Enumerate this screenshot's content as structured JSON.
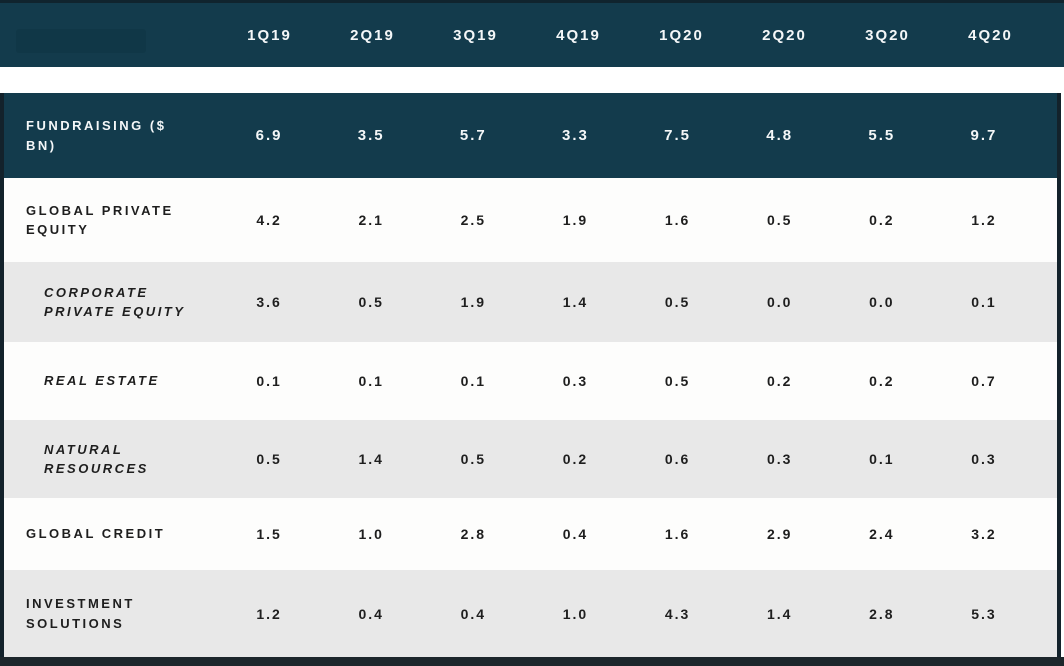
{
  "theme": {
    "header_bg": "#133B4C",
    "dark_row_bg": "#133B4C",
    "shaded_row_bg": "#E8E8E8",
    "light_row_bg": "#FDFDFC",
    "edge_color": "#13222B",
    "text_on_dark": "#F4F7F8",
    "text_on_light": "#1E1E1E"
  },
  "chart_data": {
    "type": "table",
    "columns": [
      "1Q19",
      "2Q19",
      "3Q19",
      "4Q19",
      "1Q20",
      "2Q20",
      "3Q20",
      "4Q20"
    ],
    "rows": [
      {
        "label": "FUNDRAISING ($ BN)",
        "variant": "dark",
        "sub": false,
        "values": [
          6.9,
          3.5,
          5.7,
          3.3,
          7.5,
          4.8,
          5.5,
          9.7
        ]
      },
      {
        "label": "GLOBAL PRIVATE EQUITY",
        "variant": "light",
        "sub": false,
        "values": [
          4.2,
          2.1,
          2.5,
          1.9,
          1.6,
          0.5,
          0.2,
          1.2
        ]
      },
      {
        "label": "CORPORATE PRIVATE EQUITY",
        "variant": "shaded",
        "sub": true,
        "values": [
          3.6,
          0.5,
          1.9,
          1.4,
          0.5,
          0.0,
          0.0,
          0.1
        ]
      },
      {
        "label": "REAL ESTATE",
        "variant": "light",
        "sub": true,
        "values": [
          0.1,
          0.1,
          0.1,
          0.3,
          0.5,
          0.2,
          0.2,
          0.7
        ]
      },
      {
        "label": "NATURAL RESOURCES",
        "variant": "shaded",
        "sub": true,
        "values": [
          0.5,
          1.4,
          0.5,
          0.2,
          0.6,
          0.3,
          0.1,
          0.3
        ]
      },
      {
        "label": "GLOBAL CREDIT",
        "variant": "light",
        "sub": false,
        "values": [
          1.5,
          1.0,
          2.8,
          0.4,
          1.6,
          2.9,
          2.4,
          3.2
        ]
      },
      {
        "label": "INVESTMENT SOLUTIONS",
        "variant": "shaded",
        "sub": false,
        "values": [
          1.2,
          0.4,
          0.4,
          1.0,
          4.3,
          1.4,
          2.8,
          5.3
        ]
      }
    ]
  }
}
